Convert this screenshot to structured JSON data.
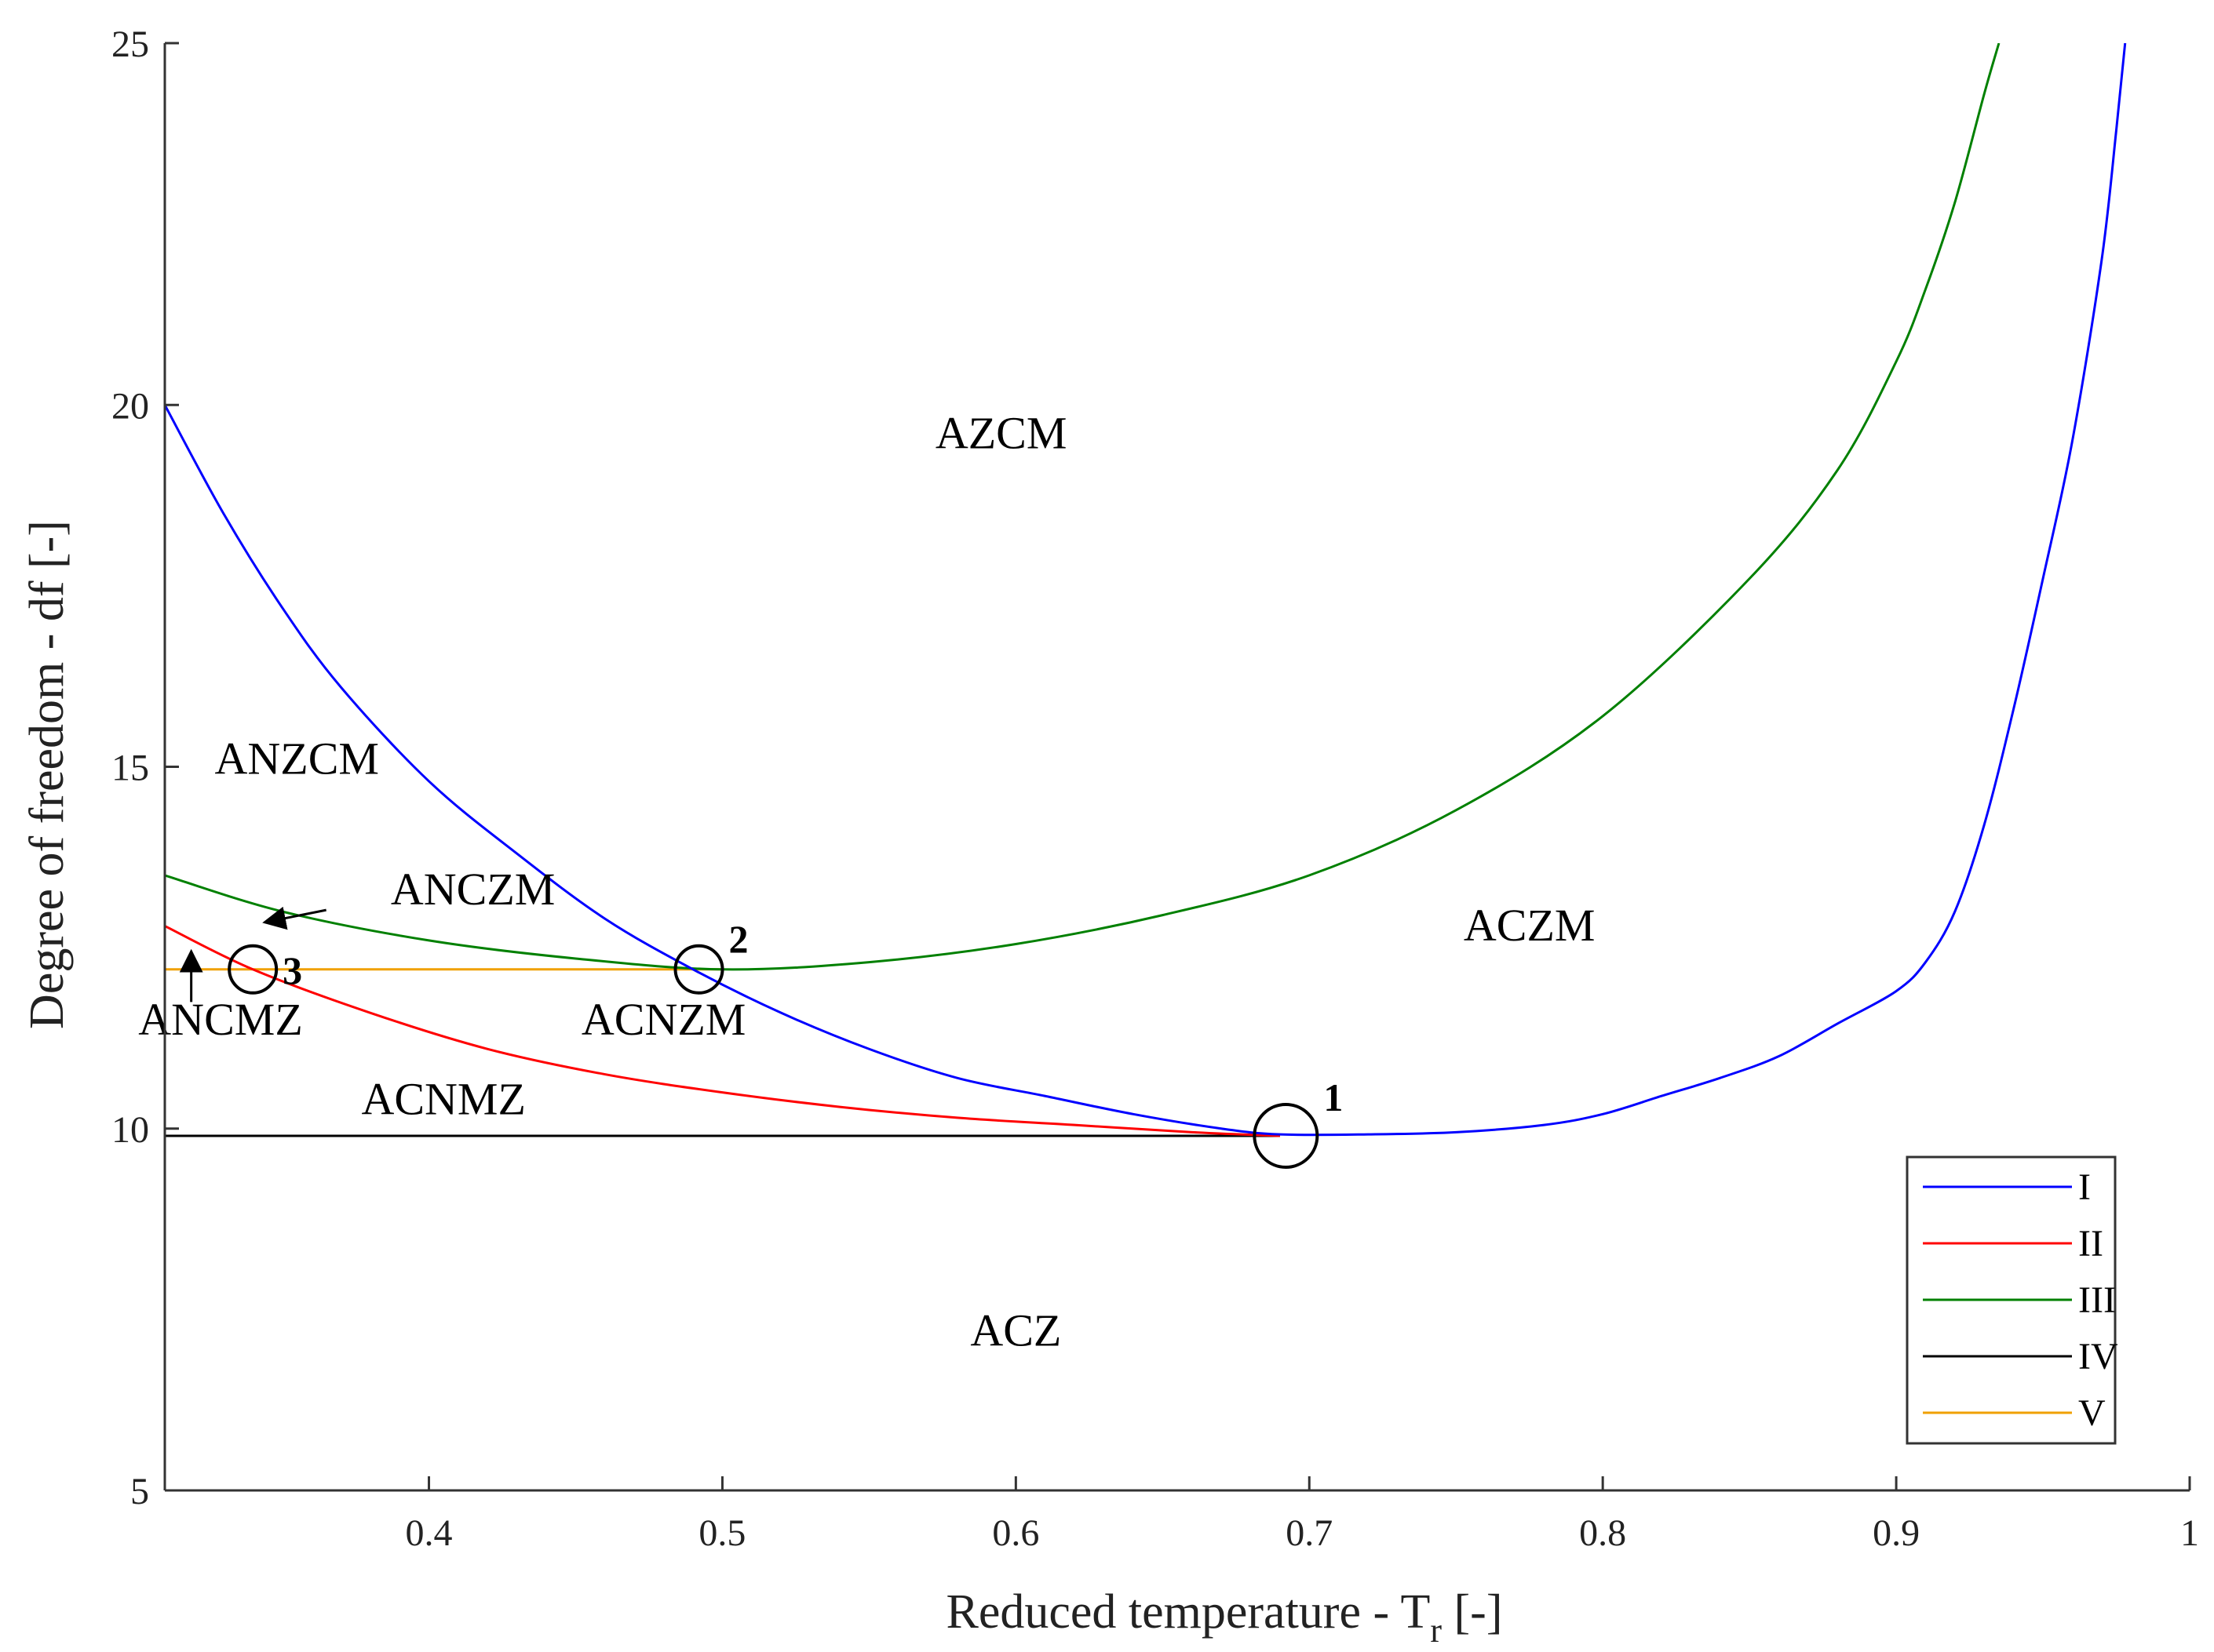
{
  "chart_data": {
    "type": "line",
    "title": "",
    "xlabel_main": "Reduced temperature - T",
    "xlabel_sub": "r",
    "xlabel_unit": "[-]",
    "ylabel": "Degree of freedom - df [-]",
    "xlim": [
      0.31,
      1.0
    ],
    "ylim": [
      5,
      25
    ],
    "x_ticks": [
      0.4,
      0.5,
      0.6,
      0.7,
      0.8,
      0.9,
      1.0
    ],
    "x_tick_labels": [
      "0.4",
      "0.5",
      "0.6",
      "0.7",
      "0.8",
      "0.9",
      "1"
    ],
    "y_ticks": [
      5,
      10,
      15,
      20,
      25
    ],
    "y_tick_labels": [
      "5",
      "10",
      "15",
      "20",
      "25"
    ],
    "grid": false,
    "legend_position": "bottom-right",
    "series": [
      {
        "name": "I",
        "color": "#0000ff",
        "x": [
          0.31,
          0.33,
          0.35,
          0.37,
          0.4,
          0.43,
          0.46,
          0.49,
          0.52,
          0.55,
          0.58,
          0.61,
          0.64,
          0.67,
          0.69,
          0.72,
          0.75,
          0.78,
          0.8,
          0.82,
          0.84,
          0.86,
          0.88,
          0.9,
          0.91,
          0.92,
          0.93,
          0.94,
          0.95,
          0.96,
          0.97,
          0.975,
          0.978
        ],
        "y": [
          20.0,
          18.5,
          17.2,
          16.1,
          14.8,
          13.8,
          12.9,
          12.2,
          11.6,
          11.1,
          10.7,
          10.45,
          10.2,
          10.0,
          9.92,
          9.92,
          9.95,
          10.05,
          10.2,
          10.45,
          10.7,
          11.0,
          11.45,
          11.9,
          12.3,
          13.0,
          14.2,
          15.8,
          17.6,
          19.5,
          22.0,
          23.8,
          25.0
        ]
      },
      {
        "name": "II",
        "color": "#ff0000",
        "x": [
          0.31,
          0.34,
          0.38,
          0.42,
          0.46,
          0.5,
          0.54,
          0.58,
          0.62,
          0.66,
          0.69
        ],
        "y": [
          12.8,
          12.2,
          11.6,
          11.1,
          10.75,
          10.5,
          10.3,
          10.15,
          10.05,
          9.95,
          9.9
        ]
      },
      {
        "name": "III",
        "color": "#008000",
        "x": [
          0.31,
          0.35,
          0.4,
          0.45,
          0.5,
          0.55,
          0.6,
          0.65,
          0.7,
          0.75,
          0.8,
          0.85,
          0.88,
          0.9,
          0.91,
          0.92,
          0.93,
          0.935
        ],
        "y": [
          13.5,
          13.0,
          12.6,
          12.35,
          12.2,
          12.3,
          12.55,
          12.95,
          13.5,
          14.4,
          15.7,
          17.6,
          19.1,
          20.6,
          21.6,
          22.8,
          24.3,
          25.0
        ]
      },
      {
        "name": "IV",
        "color": "#000000",
        "x": [
          0.31,
          0.69
        ],
        "y": [
          9.9,
          9.9
        ]
      },
      {
        "name": "V",
        "color": "#f0a000",
        "x": [
          0.31,
          0.5
        ],
        "y": [
          12.2,
          12.2
        ]
      }
    ],
    "points": [
      {
        "label": "1",
        "x": 0.692,
        "y": 9.9,
        "size": "large"
      },
      {
        "label": "2",
        "x": 0.492,
        "y": 12.2,
        "size": "medium"
      },
      {
        "label": "3",
        "x": 0.34,
        "y": 12.2,
        "size": "medium"
      }
    ],
    "regions": [
      {
        "label": "AZCM",
        "x": 0.595,
        "y": 19.4
      },
      {
        "label": "ANZCM",
        "x": 0.355,
        "y": 14.9
      },
      {
        "label": "ANCZM",
        "x": 0.415,
        "y": 13.1
      },
      {
        "label": "ACZM",
        "x": 0.775,
        "y": 12.6
      },
      {
        "label": "ACNZM",
        "x": 0.48,
        "y": 11.3
      },
      {
        "label": "ANCMZ",
        "x": 0.329,
        "y": 11.3
      },
      {
        "label": "ACNMZ",
        "x": 0.405,
        "y": 10.2
      },
      {
        "label": "ACZ",
        "x": 0.6,
        "y": 7.0
      }
    ],
    "annotations": [
      {
        "label": "ANCZM arrow",
        "from": [
          0.365,
          13.02
        ],
        "to": [
          0.344,
          12.85
        ]
      },
      {
        "label": "ANCMZ arrow",
        "from": [
          0.319,
          11.75
        ],
        "to": [
          0.319,
          12.45
        ]
      }
    ]
  }
}
